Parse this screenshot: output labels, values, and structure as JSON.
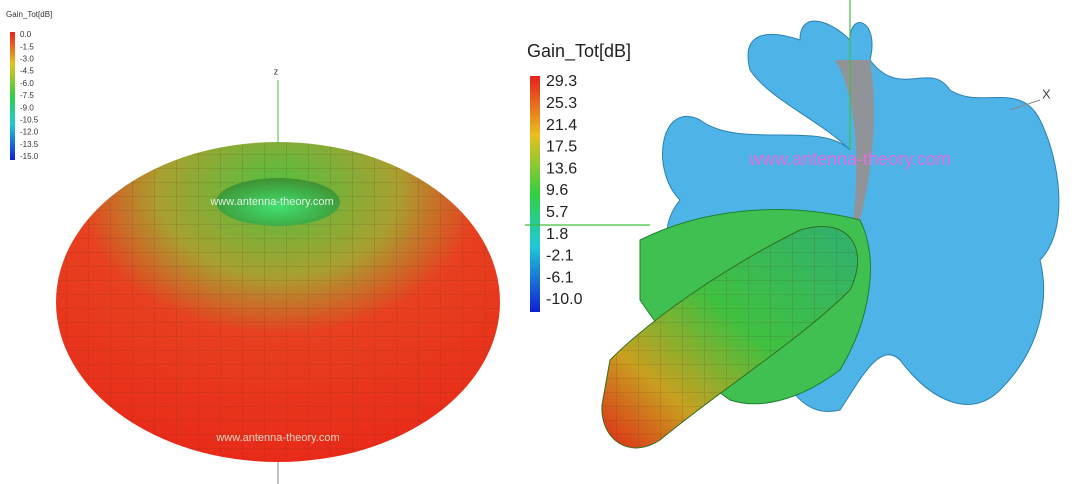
{
  "left_plot": {
    "legend_title": "Gain_Tot[dB]",
    "legend_labels": [
      "0.0",
      "-1.5",
      "-3.0",
      "-4.5",
      "-6.0",
      "-7.5",
      "-9.0",
      "-10.5",
      "-12.0",
      "-13.5",
      "-15.0"
    ],
    "axis_label": "z",
    "watermark_top": "www.antenna-theory.com",
    "watermark_bottom": "www.antenna-theory.com"
  },
  "right_plot": {
    "legend_title": "Gain_Tot[dB]",
    "legend_labels": [
      "29.3",
      "25.3",
      "21.4",
      "17.5",
      "13.6",
      "9.6",
      "5.7",
      "1.8",
      "-2.1",
      "-6.1",
      "-10.0"
    ],
    "axis_label": "X",
    "watermark": "www.antenna-theory.com"
  }
}
